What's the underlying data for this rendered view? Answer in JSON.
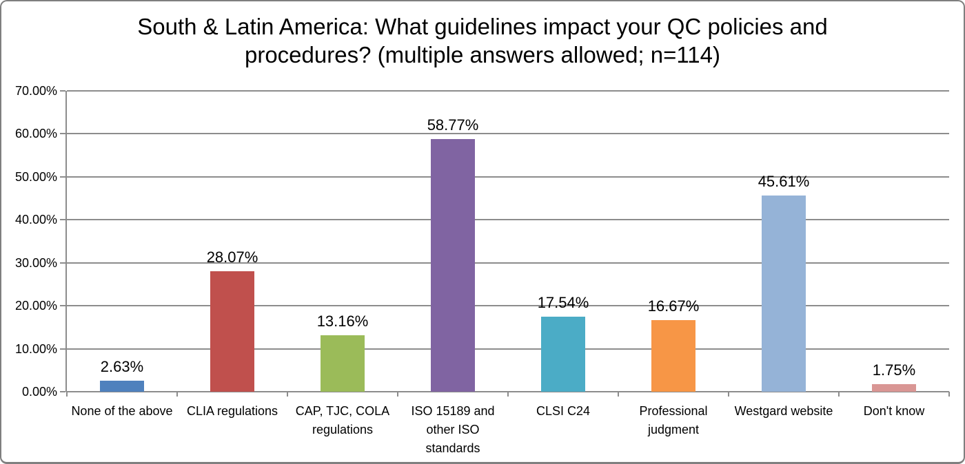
{
  "chart_data": {
    "type": "bar",
    "title": "South & Latin America: What guidelines impact your QC policies and procedures? (multiple answers allowed; n=114)",
    "categories": [
      "None of the above",
      "CLIA regulations",
      "CAP, TJC, COLA\nregulations",
      "ISO 15189 and\nother ISO\nstandards",
      "CLSI C24",
      "Professional\njudgment",
      "Westgard website",
      "Don't know"
    ],
    "values": [
      2.63,
      28.07,
      13.16,
      58.77,
      17.54,
      16.67,
      45.61,
      1.75
    ],
    "value_labels": [
      "2.63%",
      "28.07%",
      "13.16%",
      "58.77%",
      "17.54%",
      "16.67%",
      "45.61%",
      "1.75%"
    ],
    "bar_colors": [
      "#4F81BD",
      "#C0504D",
      "#9BBB59",
      "#8064A2",
      "#4BACC6",
      "#F79646",
      "#95B3D7",
      "#D99694"
    ],
    "xlabel": "",
    "ylabel": "",
    "ylim": [
      0,
      70
    ],
    "ytick_step": 10,
    "ytick_labels": [
      "0.00%",
      "10.00%",
      "20.00%",
      "30.00%",
      "40.00%",
      "50.00%",
      "60.00%",
      "70.00%"
    ],
    "grid": true,
    "legend": "none",
    "gridline_color": "#8C8C8C",
    "axis_color": "#8C8C8C",
    "background_color": "#FFFFFF",
    "border_color": "#7F7F7F"
  }
}
